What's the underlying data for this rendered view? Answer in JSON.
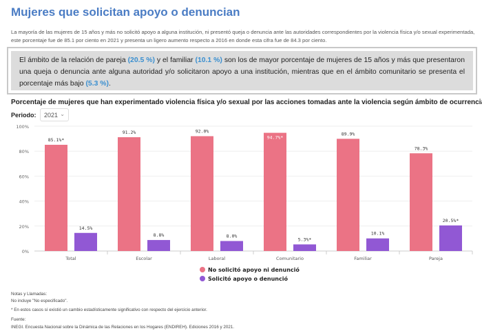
{
  "title": "Mujeres que solicitan apoyo o denuncian",
  "intro": "La mayoría de las mujeres de 15 años y más no solicitó apoyo a alguna institución, ni presentó queja o denuncia ante las autoridades correspondientes por la violencia física y/o sexual experimentada, este porcentaje fue de 85.1 por ciento en 2021 y presenta un ligero aumento respecto a 2016 en donde esta cifra fue de 84.3 por ciento.",
  "highlight": {
    "p1": "El ámbito de la relación de pareja ",
    "v1": "(20.5 %)",
    "p2": " y el familiar ",
    "v2": "(10.1 %)",
    "p3": " son los de mayor porcentaje de mujeres de 15 años y más que presentaron una queja o denuncia ante alguna autoridad y/o solicitaron apoyo a una institución, mientras que en el ámbito comunitario se presenta el porcentaje más bajo ",
    "v3": "(5.3 %)",
    "p4": "."
  },
  "period": {
    "label": "Periodo:",
    "value": "2021"
  },
  "chart_data": {
    "type": "bar",
    "title": "Porcentaje de mujeres que han experimentado violencia física y/o sexual por las acciones tomadas ante la violencia según ámbito de ocurrencia",
    "categories": [
      "Total",
      "Escolar",
      "Laboral",
      "Comunitario",
      "Familiar",
      "Pareja"
    ],
    "ylim": [
      0,
      100
    ],
    "yticks": [
      "0%",
      "20%",
      "40%",
      "60%",
      "80%",
      "100%"
    ],
    "grid": true,
    "legend_position": "bottom",
    "series": [
      {
        "name": "No solicitó apoyo ni denunció",
        "color": "#eb7385",
        "values": [
          85.1,
          91.2,
          92.0,
          94.7,
          89.9,
          78.3
        ],
        "labels": [
          "85.1%*",
          "91.2%",
          "92.0%",
          "94.7%*",
          "89.9%",
          "78.3%"
        ]
      },
      {
        "name": "Solicitó apoyo o denunció",
        "color": "#9158d4",
        "values": [
          14.5,
          8.8,
          8.0,
          5.3,
          10.1,
          20.5
        ],
        "labels": [
          "14.5%",
          "8.8%",
          "8.0%",
          "5.3%*",
          "10.1%",
          "20.5%*"
        ]
      }
    ]
  },
  "notes": {
    "heading": "Notas y Llamadas:",
    "n1": "No incluye \"No especificado\".",
    "n2": "* En estos casos sí existió un cambio estadísticamente significativo con respecto del ejercicio anterior.",
    "source_heading": "Fuente:",
    "source": "INEGI. Encuesta Nacional sobre la Dinámica de las Relaciones en los Hogares (ENDIREH). Ediciones 2016 y 2021."
  }
}
